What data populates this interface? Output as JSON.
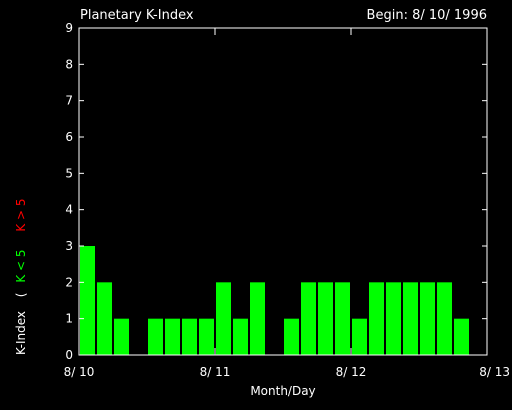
{
  "chart_data": {
    "type": "bar",
    "title": "Planetary K-Index",
    "begin_label": "Begin: 8/ 10/ 1996",
    "xlabel": "Month/Day",
    "ylabel": {
      "prefix": "K-Index",
      "open_paren": "(",
      "low_label": "K < 5",
      "high_label": "K > 5"
    },
    "colors": {
      "background": "#000000",
      "axis": "#ffffff",
      "bar_low": "#00ff00",
      "label_low": "#00ff00",
      "label_high": "#ff0000"
    },
    "ylim": [
      0,
      9
    ],
    "yticks": [
      "0",
      "1",
      "2",
      "3",
      "4",
      "5",
      "6",
      "7",
      "8",
      "9"
    ],
    "xlim": [
      0,
      24
    ],
    "xticks": [
      {
        "label": "8/ 10",
        "x": 0
      },
      {
        "label": "8/ 11",
        "x": 8
      },
      {
        "label": "8/ 12",
        "x": 16
      },
      {
        "label": "8/ 13",
        "x": 24
      }
    ],
    "bar_interval_hours": 3,
    "values": [
      3,
      2,
      1,
      0,
      1,
      1,
      1,
      1,
      2,
      1,
      2,
      0,
      1,
      2,
      2,
      2,
      1,
      2,
      2,
      2,
      2,
      2,
      1,
      0
    ]
  }
}
